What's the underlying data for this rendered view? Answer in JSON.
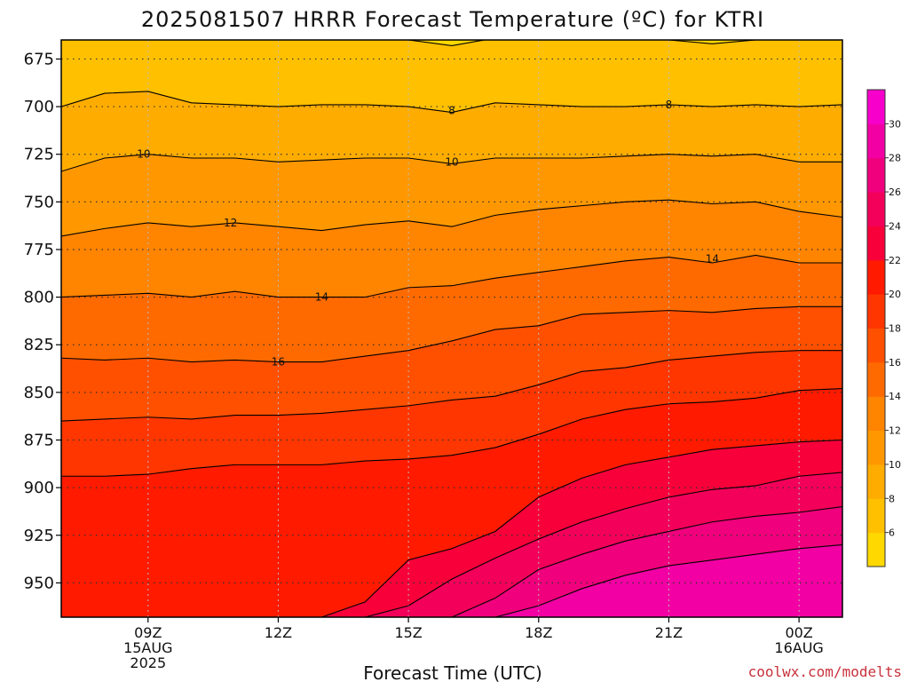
{
  "chart_data": {
    "type": "area",
    "title": "2025081507 HRRR Forecast Temperature (ºC) for KTRI",
    "xlabel": "Forecast Time (UTC)",
    "ylabel": "",
    "credit": "coolwx.com/modelts",
    "x_range_hours": [
      7,
      25
    ],
    "y_range_hPa": [
      665,
      968
    ],
    "surface_pressure_hPa": 963,
    "y_ticks": [
      675,
      700,
      725,
      750,
      775,
      800,
      825,
      850,
      875,
      900,
      925,
      950
    ],
    "x_ticks": [
      {
        "hour": 9,
        "line1": "09Z",
        "line2": "15AUG",
        "line3": "2025"
      },
      {
        "hour": 12,
        "line1": "12Z",
        "line2": "",
        "line3": ""
      },
      {
        "hour": 15,
        "line1": "15Z",
        "line2": "",
        "line3": ""
      },
      {
        "hour": 18,
        "line1": "18Z",
        "line2": "",
        "line3": ""
      },
      {
        "hour": 21,
        "line1": "21Z",
        "line2": "",
        "line3": ""
      },
      {
        "hour": 24,
        "line1": "00Z",
        "line2": "16AUG",
        "line3": ""
      }
    ],
    "x_hours": [
      7,
      8,
      9,
      10,
      11,
      12,
      13,
      14,
      15,
      16,
      17,
      18,
      19,
      20,
      21,
      22,
      23,
      24,
      25
    ],
    "isotherms": [
      {
        "value": 6,
        "pressures": [
          664,
          664,
          664,
          664,
          664,
          664,
          664,
          664,
          665,
          668,
          664,
          664,
          664,
          664,
          665,
          667,
          665,
          663,
          663
        ]
      },
      {
        "value": 8,
        "pressures": [
          700,
          693,
          692,
          698,
          699,
          700,
          699,
          699,
          700,
          703,
          698,
          699,
          700,
          700,
          699,
          700,
          699,
          700,
          699
        ]
      },
      {
        "value": 10,
        "pressures": [
          734,
          727,
          725,
          727,
          727,
          729,
          728,
          727,
          727,
          730,
          727,
          727,
          727,
          726,
          725,
          726,
          725,
          729,
          729
        ]
      },
      {
        "value": 12,
        "pressures": [
          768,
          764,
          761,
          763,
          761,
          763,
          765,
          762,
          760,
          763,
          757,
          754,
          752,
          750,
          749,
          751,
          750,
          755,
          758
        ]
      },
      {
        "value": 14,
        "pressures": [
          800,
          799,
          798,
          800,
          797,
          800,
          800,
          800,
          795,
          794,
          790,
          787,
          784,
          781,
          779,
          782,
          778,
          782,
          782
        ]
      },
      {
        "value": 16,
        "pressures": [
          832,
          833,
          832,
          834,
          833,
          834,
          834,
          831,
          828,
          823,
          817,
          815,
          809,
          808,
          807,
          808,
          806,
          805,
          805
        ]
      },
      {
        "value": 18,
        "pressures": [
          865,
          864,
          863,
          864,
          862,
          862,
          861,
          859,
          857,
          854,
          852,
          846,
          839,
          837,
          833,
          831,
          829,
          828,
          828
        ]
      },
      {
        "value": 20,
        "pressures": [
          894,
          894,
          893,
          890,
          888,
          888,
          888,
          886,
          885,
          883,
          879,
          872,
          864,
          859,
          856,
          855,
          853,
          849,
          848
        ]
      },
      {
        "value": 22,
        "pressures": [
          968,
          968,
          968,
          968,
          968,
          968,
          968,
          960,
          938,
          932,
          923,
          905,
          895,
          888,
          884,
          880,
          878,
          876,
          875
        ]
      },
      {
        "value": 24,
        "pressures": [
          968,
          968,
          968,
          968,
          968,
          968,
          968,
          968,
          962,
          948,
          937,
          927,
          918,
          911,
          905,
          901,
          899,
          894,
          892
        ]
      },
      {
        "value": 26,
        "pressures": [
          968,
          968,
          968,
          968,
          968,
          968,
          968,
          968,
          968,
          968,
          958,
          943,
          935,
          928,
          923,
          918,
          915,
          913,
          910
        ]
      },
      {
        "value": 28,
        "pressures": [
          968,
          968,
          968,
          968,
          968,
          968,
          968,
          968,
          968,
          968,
          968,
          962,
          953,
          946,
          941,
          938,
          935,
          932,
          930
        ]
      }
    ],
    "isotherm_labels": [
      {
        "text": "8",
        "hour": 16.0,
        "pressure": 702
      },
      {
        "text": "8",
        "hour": 21.0,
        "pressure": 699
      },
      {
        "text": "10",
        "hour": 8.9,
        "pressure": 725
      },
      {
        "text": "10",
        "hour": 16.0,
        "pressure": 729
      },
      {
        "text": "12",
        "hour": 10.9,
        "pressure": 761
      },
      {
        "text": "14",
        "hour": 13.0,
        "pressure": 800
      },
      {
        "text": "14",
        "hour": 22.0,
        "pressure": 780
      },
      {
        "text": "16",
        "hour": 12.0,
        "pressure": 834
      }
    ],
    "colorbar": {
      "levels": [
        4,
        6,
        8,
        10,
        12,
        14,
        16,
        18,
        20,
        22,
        24,
        26,
        28,
        30,
        32
      ],
      "tick_labels": [
        "6",
        "8",
        "10",
        "12",
        "14",
        "16",
        "18",
        "20",
        "22",
        "24",
        "26",
        "28",
        "30"
      ],
      "colors": [
        "#ffd800",
        "#ffc000",
        "#ffac00",
        "#ff9800",
        "#ff8400",
        "#ff6a00",
        "#ff5000",
        "#ff3600",
        "#ff1a00",
        "#f8003a",
        "#f2005a",
        "#f0007c",
        "#f200a4",
        "#f800cc"
      ]
    },
    "ground_color": "#a0522d",
    "grid": true,
    "legend": "colorbar-right"
  }
}
